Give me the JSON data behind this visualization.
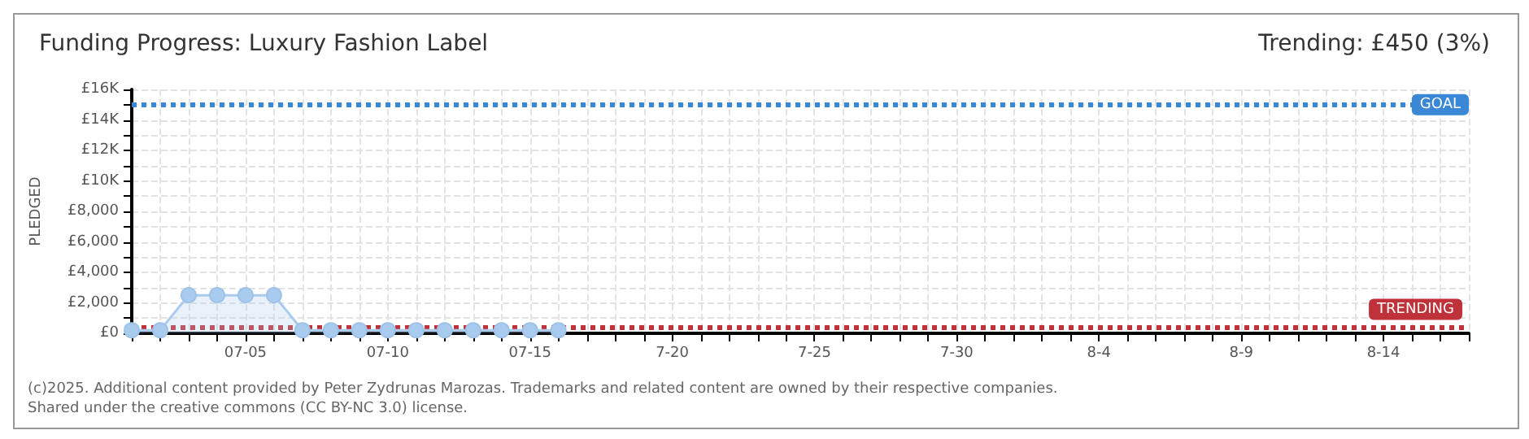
{
  "chart_data": {
    "type": "area",
    "title": "Funding Progress: Luxury Fashion Label",
    "subtitle": "Trending: £450 (3%)",
    "ylabel": "PLEDGED",
    "x": [
      "--07-01",
      "--07-02",
      "--07-03",
      "--07-04",
      "--07-05",
      "--07-06",
      "--07-07",
      "--07-08",
      "--07-09",
      "--07-10",
      "--07-11",
      "--07-12",
      "--07-13",
      "--07-14",
      "--07-15",
      "--07-16"
    ],
    "series": [
      {
        "color": "#a9cbee",
        "values": [
          200,
          200,
          2500,
          2500,
          2500,
          2500,
          200,
          200,
          200,
          200,
          200,
          200,
          200,
          200,
          200,
          200
        ]
      }
    ],
    "xlim": [
      "--07-01",
      "--08-17"
    ],
    "xticks": [
      {
        "value": "--07-01",
        "label": null
      },
      {
        "value": "--07-02",
        "label": null
      },
      {
        "value": "--07-03",
        "label": null
      },
      {
        "value": "--07-04",
        "label": null
      },
      {
        "value": "--07-05",
        "label": "07-05"
      },
      {
        "value": "--07-06",
        "label": null
      },
      {
        "value": "--07-07",
        "label": null
      },
      {
        "value": "--07-08",
        "label": null
      },
      {
        "value": "--07-09",
        "label": null
      },
      {
        "value": "--07-10",
        "label": "07-10"
      },
      {
        "value": "--07-11",
        "label": null
      },
      {
        "value": "--07-12",
        "label": null
      },
      {
        "value": "--07-13",
        "label": null
      },
      {
        "value": "--07-14",
        "label": null
      },
      {
        "value": "--07-15",
        "label": "07-15"
      },
      {
        "value": "--07-16",
        "label": null
      },
      {
        "value": "--07-17",
        "label": null
      },
      {
        "value": "--07-18",
        "label": null
      },
      {
        "value": "--07-19",
        "label": null
      },
      {
        "value": "--07-20",
        "label": "7-20"
      },
      {
        "value": "--07-21",
        "label": null
      },
      {
        "value": "--07-22",
        "label": null
      },
      {
        "value": "--07-23",
        "label": null
      },
      {
        "value": "--07-24",
        "label": null
      },
      {
        "value": "--07-25",
        "label": "7-25"
      },
      {
        "value": "--07-26",
        "label": null
      },
      {
        "value": "--07-27",
        "label": null
      },
      {
        "value": "--07-28",
        "label": null
      },
      {
        "value": "--07-29",
        "label": null
      },
      {
        "value": "--07-30",
        "label": "7-30"
      },
      {
        "value": "--07-31",
        "label": null
      },
      {
        "value": "--08-01",
        "label": null
      },
      {
        "value": "--08-02",
        "label": null
      },
      {
        "value": "--08-03",
        "label": null
      },
      {
        "value": "--08-04",
        "label": "8-4"
      },
      {
        "value": "--08-05",
        "label": null
      },
      {
        "value": "--08-06",
        "label": null
      },
      {
        "value": "--08-07",
        "label": null
      },
      {
        "value": "--08-08",
        "label": null
      },
      {
        "value": "--08-09",
        "label": "8-9"
      },
      {
        "value": "--08-10",
        "label": null
      },
      {
        "value": "--08-11",
        "label": null
      },
      {
        "value": "--08-12",
        "label": null
      },
      {
        "value": "--08-13",
        "label": null
      },
      {
        "value": "--08-14",
        "label": "8-14"
      },
      {
        "value": "--08-15",
        "label": null
      },
      {
        "value": "--08-16",
        "label": null
      },
      {
        "value": "--08-17",
        "label": null
      }
    ],
    "ylim": [
      0,
      16000
    ],
    "yticks": [
      {
        "value": 0,
        "label": "£0"
      },
      {
        "value": 1000,
        "label": null
      },
      {
        "value": 2000,
        "label": "£2,000"
      },
      {
        "value": 3000,
        "label": null
      },
      {
        "value": 4000,
        "label": "£4,000"
      },
      {
        "value": 5000,
        "label": null
      },
      {
        "value": 6000,
        "label": "£6,000"
      },
      {
        "value": 7000,
        "label": null
      },
      {
        "value": 8000,
        "label": "£8,000"
      },
      {
        "value": 9000,
        "label": null
      },
      {
        "value": 10000,
        "label": "£10K"
      },
      {
        "value": 11000,
        "label": null
      },
      {
        "value": 12000,
        "label": "£12K"
      },
      {
        "value": 13000,
        "label": null
      },
      {
        "value": 14000,
        "label": "£14K"
      },
      {
        "value": 15000,
        "label": null
      },
      {
        "value": 16000,
        "label": "£16K"
      }
    ],
    "ref_lines": [
      {
        "axis": "y",
        "value": 15000,
        "label": "GOAL",
        "color": "#3a87d6",
        "line_style": "dotted"
      },
      {
        "axis": "y",
        "value": 450,
        "label": "TRENDING",
        "color": "#c0323a",
        "line_style": "dotted"
      }
    ],
    "grid": true,
    "marker": "circle",
    "annotations": [
      "(c)2025. Additional content provided by Peter Zydrunas Marozas. Trademarks and related content are owned by their respective companies.",
      "Shared under the creative commons (CC BY-NC 3.0) license."
    ]
  }
}
